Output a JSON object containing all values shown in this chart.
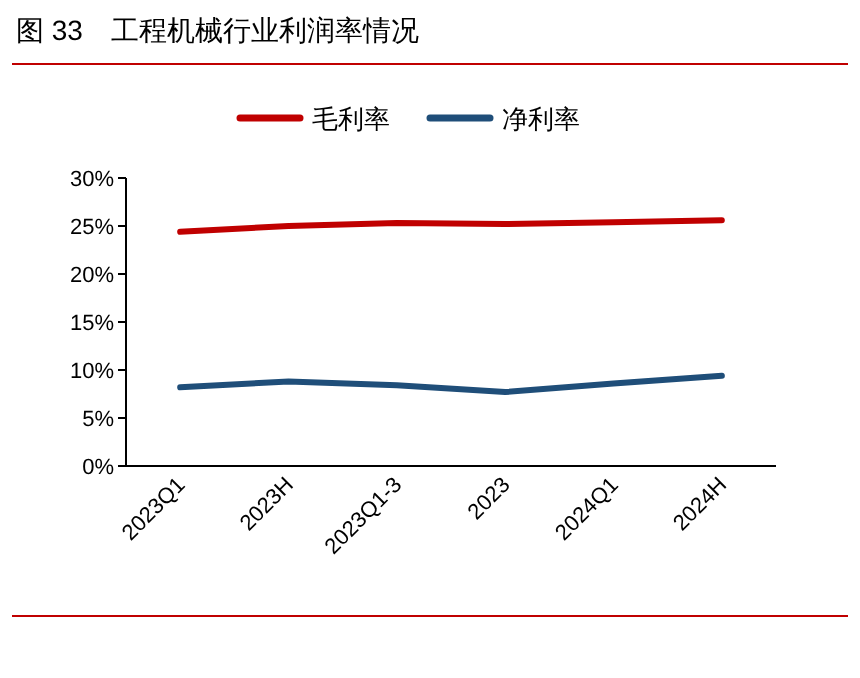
{
  "chart_data": {
    "type": "line",
    "title": "图 33　工程机械行业利润率情况",
    "categories": [
      "2023Q1",
      "2023H",
      "2023Q1-3",
      "2023",
      "2024Q1",
      "2024H"
    ],
    "series": [
      {
        "name": "毛利率",
        "color": "#c00000",
        "values": [
          24.4,
          25.0,
          25.3,
          25.2,
          25.4,
          25.6
        ]
      },
      {
        "name": "净利率",
        "color": "#1f4e79",
        "values": [
          8.2,
          8.8,
          8.4,
          7.7,
          8.6,
          9.4
        ]
      }
    ],
    "ylim": [
      0,
      30
    ],
    "yticks": [
      {
        "value": 0,
        "label": "0%"
      },
      {
        "value": 5,
        "label": "5%"
      },
      {
        "value": 10,
        "label": "10%"
      },
      {
        "value": 15,
        "label": "15%"
      },
      {
        "value": 20,
        "label": "20%"
      },
      {
        "value": 25,
        "label": "25%"
      },
      {
        "value": 30,
        "label": "30%"
      }
    ],
    "legend": "top",
    "grid": false,
    "marker": "none",
    "line_style": "solid"
  }
}
